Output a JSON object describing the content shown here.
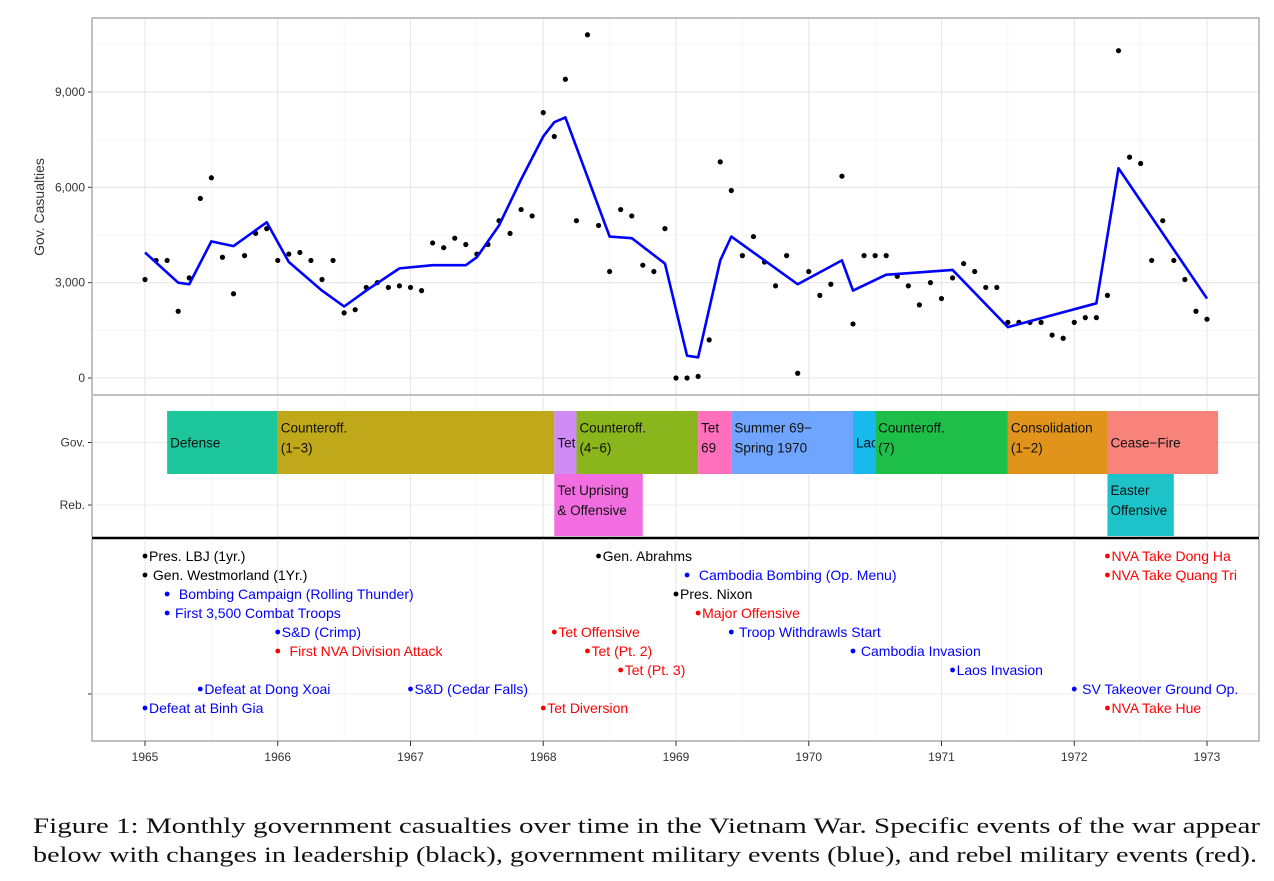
{
  "x_axis": {
    "ticks": [
      "1965",
      "1966",
      "1967",
      "1968",
      "1969",
      "1970",
      "1971",
      "1972",
      "1973"
    ]
  },
  "chart_data": [
    {
      "type": "scatter",
      "panel": "casualties",
      "ylabel": "Gov. Casualties",
      "yticks": [
        {
          "value": 0,
          "label": "0"
        },
        {
          "value": 3000,
          "label": "3,000"
        },
        {
          "value": 6000,
          "label": "6,000"
        },
        {
          "value": 9000,
          "label": "9,000"
        }
      ],
      "ylim": [
        -250,
        11300
      ],
      "xlim": [
        "1964-07",
        "1973-05"
      ],
      "grid": true,
      "point_color": "#000000",
      "line_color": "#0000ff",
      "points": [
        [
          "1965-01",
          3100
        ],
        [
          "1965-02",
          3700
        ],
        [
          "1965-03",
          3700
        ],
        [
          "1965-04",
          2100
        ],
        [
          "1965-05",
          3150
        ],
        [
          "1965-06",
          5650
        ],
        [
          "1965-07",
          6300
        ],
        [
          "1965-08",
          3800
        ],
        [
          "1965-09",
          2650
        ],
        [
          "1965-10",
          3850
        ],
        [
          "1965-11",
          4550
        ],
        [
          "1965-12",
          4700
        ],
        [
          "1966-01",
          3700
        ],
        [
          "1966-02",
          3900
        ],
        [
          "1966-03",
          3950
        ],
        [
          "1966-04",
          3700
        ],
        [
          "1966-05",
          3100
        ],
        [
          "1966-06",
          3700
        ],
        [
          "1966-07",
          2050
        ],
        [
          "1966-08",
          2150
        ],
        [
          "1966-09",
          2850
        ],
        [
          "1966-10",
          3000
        ],
        [
          "1966-11",
          2850
        ],
        [
          "1966-12",
          2900
        ],
        [
          "1967-01",
          2850
        ],
        [
          "1967-02",
          2750
        ],
        [
          "1967-03",
          4250
        ],
        [
          "1967-04",
          4100
        ],
        [
          "1967-05",
          4400
        ],
        [
          "1967-06",
          4200
        ],
        [
          "1967-07",
          3900
        ],
        [
          "1967-08",
          4200
        ],
        [
          "1967-09",
          4950
        ],
        [
          "1967-10",
          4550
        ],
        [
          "1967-11",
          5300
        ],
        [
          "1967-12",
          5100
        ],
        [
          "1968-01",
          8350
        ],
        [
          "1968-02",
          7600
        ],
        [
          "1968-03",
          9400
        ],
        [
          "1968-04",
          4950
        ],
        [
          "1968-05",
          10800
        ],
        [
          "1968-06",
          4800
        ],
        [
          "1968-07",
          3350
        ],
        [
          "1968-08",
          5300
        ],
        [
          "1968-09",
          5100
        ],
        [
          "1968-10",
          3550
        ],
        [
          "1968-11",
          3350
        ],
        [
          "1968-12",
          4700
        ],
        [
          "1969-01",
          0
        ],
        [
          "1969-02",
          0
        ],
        [
          "1969-03",
          50
        ],
        [
          "1969-04",
          1200
        ],
        [
          "1969-05",
          6800
        ],
        [
          "1969-06",
          5900
        ],
        [
          "1969-07",
          3850
        ],
        [
          "1969-08",
          4450
        ],
        [
          "1969-09",
          3650
        ],
        [
          "1969-10",
          2900
        ],
        [
          "1969-11",
          3850
        ],
        [
          "1969-12",
          150
        ],
        [
          "1970-01",
          3350
        ],
        [
          "1970-02",
          2600
        ],
        [
          "1970-03",
          2950
        ],
        [
          "1970-04",
          6350
        ],
        [
          "1970-05",
          1700
        ],
        [
          "1970-06",
          3850
        ],
        [
          "1970-07",
          3850
        ],
        [
          "1970-08",
          3850
        ],
        [
          "1970-09",
          3200
        ],
        [
          "1970-10",
          2900
        ],
        [
          "1970-11",
          2300
        ],
        [
          "1970-12",
          3000
        ],
        [
          "1971-01",
          2500
        ],
        [
          "1971-02",
          3150
        ],
        [
          "1971-03",
          3600
        ],
        [
          "1971-04",
          3350
        ],
        [
          "1971-05",
          2850
        ],
        [
          "1971-06",
          2850
        ],
        [
          "1971-07",
          1750
        ],
        [
          "1971-08",
          1750
        ],
        [
          "1971-09",
          1750
        ],
        [
          "1971-10",
          1750
        ],
        [
          "1971-11",
          1350
        ],
        [
          "1971-12",
          1250
        ],
        [
          "1972-01",
          1750
        ],
        [
          "1972-02",
          1900
        ],
        [
          "1972-03",
          1900
        ],
        [
          "1972-04",
          2600
        ],
        [
          "1972-05",
          10300
        ],
        [
          "1972-06",
          6950
        ],
        [
          "1972-07",
          6750
        ],
        [
          "1972-08",
          3700
        ],
        [
          "1972-09",
          4950
        ],
        [
          "1972-10",
          3700
        ],
        [
          "1972-11",
          3100
        ],
        [
          "1972-12",
          2100
        ],
        [
          "1973-01",
          1850
        ]
      ],
      "trend_line": [
        [
          "1965-01",
          3950
        ],
        [
          "1965-04",
          3000
        ],
        [
          "1965-05",
          2950
        ],
        [
          "1965-07",
          4300
        ],
        [
          "1965-09",
          4150
        ],
        [
          "1965-12",
          4900
        ],
        [
          "1966-02",
          3650
        ],
        [
          "1966-05",
          2750
        ],
        [
          "1966-07",
          2250
        ],
        [
          "1966-09",
          2750
        ],
        [
          "1966-12",
          3450
        ],
        [
          "1967-03",
          3550
        ],
        [
          "1967-06",
          3550
        ],
        [
          "1967-07",
          3800
        ],
        [
          "1967-09",
          4800
        ],
        [
          "1967-11",
          6250
        ],
        [
          "1968-01",
          7600
        ],
        [
          "1968-02",
          8050
        ],
        [
          "1968-03",
          8200
        ],
        [
          "1968-07",
          4450
        ],
        [
          "1968-09",
          4400
        ],
        [
          "1968-12",
          3600
        ],
        [
          "1969-02",
          700
        ],
        [
          "1969-03",
          650
        ],
        [
          "1969-05",
          3700
        ],
        [
          "1969-06",
          4450
        ],
        [
          "1969-12",
          2950
        ],
        [
          "1970-04",
          3700
        ],
        [
          "1970-05",
          2750
        ],
        [
          "1970-08",
          3250
        ],
        [
          "1971-02",
          3400
        ],
        [
          "1971-07",
          1600
        ],
        [
          "1972-03",
          2350
        ],
        [
          "1972-05",
          6600
        ],
        [
          "1973-01",
          2500
        ]
      ]
    },
    {
      "type": "timeline",
      "panel": "phases",
      "rows": [
        "Gov.",
        "Reb."
      ],
      "periods": [
        {
          "row": "Gov.",
          "lines": [
            "Defense"
          ],
          "start": "1965-03",
          "end": "1966-01",
          "color": "#1ec69b"
        },
        {
          "row": "Gov.",
          "lines": [
            "Counteroff.",
            "(1−3)"
          ],
          "start": "1966-01",
          "end": "1968-02",
          "color": "#bfa81a"
        },
        {
          "row": "Gov.",
          "lines": [
            "Tet"
          ],
          "start": "1968-02",
          "end": "1968-04",
          "color": "#d08bf6"
        },
        {
          "row": "Gov.",
          "lines": [
            "Counteroff.",
            "(4−6)"
          ],
          "start": "1968-04",
          "end": "1969-03",
          "color": "#8ab51c"
        },
        {
          "row": "Gov.",
          "lines": [
            "Tet",
            "69"
          ],
          "start": "1969-03",
          "end": "1969-06",
          "color": "#ff6fbc"
        },
        {
          "row": "Gov.",
          "lines": [
            "Summer 69−",
            "Spring 1970"
          ],
          "start": "1969-06",
          "end": "1970-05",
          "color": "#6fa4ff"
        },
        {
          "row": "Gov.",
          "lines": [
            "Laos"
          ],
          "start": "1970-05",
          "end": "1970-07",
          "color": "#18b9ed"
        },
        {
          "row": "Gov.",
          "lines": [
            "Counteroff.",
            "(7)"
          ],
          "start": "1970-07",
          "end": "1971-07",
          "color": "#1dbf48"
        },
        {
          "row": "Gov.",
          "lines": [
            "Consolidation",
            "(1−2)"
          ],
          "start": "1971-07",
          "end": "1972-04",
          "color": "#e0941c"
        },
        {
          "row": "Gov.",
          "lines": [
            "Cease−Fire"
          ],
          "start": "1972-04",
          "end": "1973-02",
          "color": "#f8837a"
        },
        {
          "row": "Reb.",
          "lines": [
            "Tet Uprising",
            "& Offensive"
          ],
          "start": "1968-02",
          "end": "1968-10",
          "color": "#f26ee0"
        },
        {
          "row": "Reb.",
          "lines": [
            "Easter",
            "Offensive"
          ],
          "start": "1972-04",
          "end": "1972-10",
          "color": "#1dc3c8"
        }
      ]
    },
    {
      "type": "event_timeline",
      "panel": "events",
      "category_colors": {
        "leadership": "#000000",
        "government": "#0000ff",
        "rebel": "#ff0000"
      },
      "events": [
        {
          "date": "1965-01",
          "label": "Pres. LBJ (1yr.)",
          "category": "leadership"
        },
        {
          "date": "1965-01",
          "label": " Gen. Westmorland (1Yr.)",
          "category": "leadership"
        },
        {
          "date": "1965-03",
          "label": "  Bombing Campaign (Rolling Thunder)",
          "category": "government"
        },
        {
          "date": "1965-03",
          "label": " First 3,500 Combat Troops",
          "category": "government"
        },
        {
          "date": "1966-01",
          "label": "S&D (Crimp)",
          "category": "government"
        },
        {
          "date": "1966-01",
          "label": "  First NVA Division Attack",
          "category": "rebel"
        },
        {
          "date": "1965-06",
          "label": "Defeat at Dong Xoai",
          "category": "government"
        },
        {
          "date": "1967-01",
          "label": "S&D (Cedar Falls)",
          "category": "government"
        },
        {
          "date": "1965-01",
          "label": "Defeat at Binh Gia",
          "category": "government"
        },
        {
          "date": "1968-06",
          "label": "Gen. Abrahms",
          "category": "leadership"
        },
        {
          "date": "1969-02",
          "label": "  Cambodia Bombing (Op. Menu)",
          "category": "government"
        },
        {
          "date": "1969-01",
          "label": "Pres. Nixon",
          "category": "leadership"
        },
        {
          "date": "1969-03",
          "label": "Major Offensive",
          "category": "rebel"
        },
        {
          "date": "1968-02",
          "label": "Tet Offensive",
          "category": "rebel"
        },
        {
          "date": "1968-05",
          "label": "Tet (Pt. 2)",
          "category": "rebel"
        },
        {
          "date": "1968-08",
          "label": "Tet (Pt. 3)",
          "category": "rebel"
        },
        {
          "date": "1969-06",
          "label": " Troop Withdrawls Start",
          "category": "government"
        },
        {
          "date": "1970-05",
          "label": " Cambodia Invasion",
          "category": "government"
        },
        {
          "date": "1971-02",
          "label": "Laos Invasion",
          "category": "government"
        },
        {
          "date": "1972-01",
          "label": " SV Takeover Ground Op.",
          "category": "government"
        },
        {
          "date": "1968-01",
          "label": "Tet Diversion",
          "category": "rebel"
        },
        {
          "date": "1972-04",
          "label": "NVA Take Dong Ha",
          "category": "rebel"
        },
        {
          "date": "1972-04",
          "label": "NVA Take Quang Tri",
          "category": "rebel"
        },
        {
          "date": "1972-04",
          "label": "NVA Take Hue",
          "category": "rebel"
        }
      ]
    }
  ],
  "caption": {
    "line1": "Figure 1: Monthly government casualties over time in the Vietnam War. Specific events of the war appear",
    "line2": "below with changes in leadership (black), government military events (blue), and rebel military events (red)."
  }
}
